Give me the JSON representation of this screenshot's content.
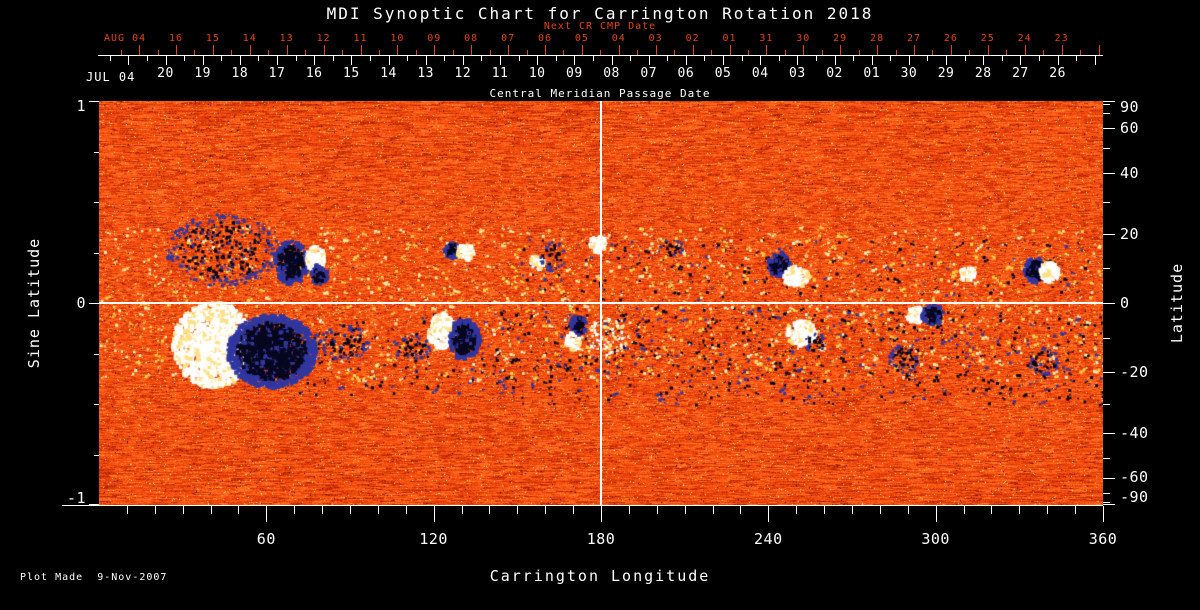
{
  "footer": {
    "plot_made": "Plot Made  9-Nov-2007"
  },
  "colors": {
    "background": "#000000",
    "axis_white": "#ffffff",
    "axis_red": "#e8420c"
  },
  "chart_data": {
    "type": "heatmap",
    "title": "MDI Synoptic Chart for Carrington Rotation 2018",
    "xlabel": "Carrington Longitude",
    "ylabel_left": "Sine Latitude",
    "ylabel_right": "Latitude",
    "x_range": [
      0,
      360
    ],
    "x_major_ticks": [
      60,
      120,
      180,
      240,
      300,
      360
    ],
    "x_minor_step": 10,
    "y_left_range": [
      -1,
      1
    ],
    "y_left_major_ticks": [
      "1",
      "0",
      "-1"
    ],
    "y_left_major_values": [
      1,
      0,
      -1
    ],
    "y_left_minor_values": [
      0.75,
      0.5,
      0.25,
      -0.25,
      -0.5,
      -0.75
    ],
    "y_right_major_ticks": [
      90,
      60,
      40,
      20,
      0,
      -20,
      -40,
      -60,
      -90
    ],
    "y_right_minor_ticks": [
      80,
      70,
      50,
      30,
      10,
      -10,
      -30,
      -50,
      -70,
      -80
    ],
    "grid": "crosshair only",
    "crosshair": {
      "longitude": 180,
      "sine_latitude": 0
    },
    "top_axis_next_cr": {
      "caption": "Next CR CMP Date",
      "month_label": "AUG 04",
      "day_labels": [
        "16",
        "15",
        "14",
        "13",
        "12",
        "11",
        "10",
        "09",
        "08",
        "07",
        "06",
        "05",
        "04",
        "03",
        "02",
        "01",
        "31",
        "30",
        "29",
        "28",
        "27",
        "26",
        "25",
        "24",
        "23"
      ]
    },
    "top_axis_cmp": {
      "caption": "Central Meridian Passage Date",
      "month_label": "JUL 04",
      "day_labels": [
        "20",
        "19",
        "18",
        "17",
        "16",
        "15",
        "14",
        "13",
        "12",
        "11",
        "10",
        "09",
        "08",
        "07",
        "06",
        "05",
        "04",
        "03",
        "02",
        "01",
        "30",
        "29",
        "28",
        "27",
        "26"
      ]
    },
    "colormap": {
      "description": "orange-red noisy magnetogram; white = positive polarity, dark navy = negative polarity",
      "background_palette": [
        "#a82303",
        "#d63507",
        "#ef4a0e",
        "#ff5f16",
        "#ff7e2e"
      ],
      "network_yellow": "#ffd24a",
      "network_pale": "#ffeeb0",
      "positive_core": "#ffffff",
      "positive_warm": "#ffe082",
      "negative_core": "#07071f",
      "negative_fringe": "#3136a0",
      "dark_speck": "#1a1c66"
    },
    "active_regions": [
      {
        "lon": 45,
        "slat": 0.26,
        "dlon": 42,
        "dslat": 0.36,
        "polarity": "negative",
        "style": "speckle",
        "intensity": 0.45
      },
      {
        "lon": 69,
        "slat": 0.2,
        "dlon": 12,
        "dslat": 0.22,
        "polarity": "negative",
        "style": "blob",
        "intensity": 0.7
      },
      {
        "lon": 77.5,
        "slat": 0.22,
        "dlon": 7,
        "dslat": 0.12,
        "polarity": "positive",
        "style": "blob",
        "intensity": 0.9
      },
      {
        "lon": 79,
        "slat": 0.14,
        "dlon": 6,
        "dslat": 0.1,
        "polarity": "negative",
        "style": "blob",
        "intensity": 0.7
      },
      {
        "lon": 41,
        "slat": -0.21,
        "dlon": 29,
        "dslat": 0.42,
        "polarity": "positive",
        "style": "blob",
        "intensity": 1.0
      },
      {
        "lon": 62,
        "slat": -0.24,
        "dlon": 32,
        "dslat": 0.36,
        "polarity": "negative",
        "style": "blob",
        "intensity": 1.0
      },
      {
        "lon": 88,
        "slat": -0.2,
        "dlon": 18,
        "dslat": 0.18,
        "polarity": "negative",
        "style": "speckle",
        "intensity": 0.5
      },
      {
        "lon": 126.5,
        "slat": 0.26,
        "dlon": 5,
        "dslat": 0.08,
        "polarity": "negative",
        "style": "blob",
        "intensity": 0.8
      },
      {
        "lon": 131.5,
        "slat": 0.25,
        "dlon": 6,
        "dslat": 0.08,
        "polarity": "positive",
        "style": "blob",
        "intensity": 0.9
      },
      {
        "lon": 123,
        "slat": -0.14,
        "dlon": 10,
        "dslat": 0.18,
        "polarity": "positive",
        "style": "blob",
        "intensity": 0.9
      },
      {
        "lon": 131,
        "slat": -0.18,
        "dlon": 11,
        "dslat": 0.2,
        "polarity": "negative",
        "style": "blob",
        "intensity": 0.9
      },
      {
        "lon": 112,
        "slat": -0.22,
        "dlon": 14,
        "dslat": 0.12,
        "polarity": "negative",
        "style": "speckle",
        "intensity": 0.4
      },
      {
        "lon": 157,
        "slat": 0.2,
        "dlon": 5,
        "dslat": 0.07,
        "polarity": "positive",
        "style": "blob",
        "intensity": 0.7
      },
      {
        "lon": 163,
        "slat": 0.23,
        "dlon": 10,
        "dslat": 0.15,
        "polarity": "negative",
        "style": "speckle",
        "intensity": 0.4
      },
      {
        "lon": 179,
        "slat": 0.29,
        "dlon": 6,
        "dslat": 0.08,
        "polarity": "positive",
        "style": "blob",
        "intensity": 1.0
      },
      {
        "lon": 172,
        "slat": -0.11,
        "dlon": 6,
        "dslat": 0.1,
        "polarity": "negative",
        "style": "blob",
        "intensity": 0.85
      },
      {
        "lon": 170,
        "slat": -0.19,
        "dlon": 5,
        "dslat": 0.08,
        "polarity": "positive",
        "style": "blob",
        "intensity": 0.8
      },
      {
        "lon": 183,
        "slat": -0.17,
        "dlon": 16,
        "dslat": 0.18,
        "polarity": "positive",
        "style": "speckle",
        "intensity": 0.45
      },
      {
        "lon": 205,
        "slat": 0.27,
        "dlon": 9,
        "dslat": 0.1,
        "polarity": "negative",
        "style": "speckle",
        "intensity": 0.35
      },
      {
        "lon": 244,
        "slat": 0.19,
        "dlon": 8,
        "dslat": 0.12,
        "polarity": "negative",
        "style": "blob",
        "intensity": 0.9
      },
      {
        "lon": 250,
        "slat": 0.13,
        "dlon": 9,
        "dslat": 0.1,
        "polarity": "positive",
        "style": "blob",
        "intensity": 0.9
      },
      {
        "lon": 252,
        "slat": -0.15,
        "dlon": 11,
        "dslat": 0.12,
        "polarity": "positive",
        "style": "blob",
        "intensity": 0.85
      },
      {
        "lon": 257,
        "slat": -0.2,
        "dlon": 8,
        "dslat": 0.1,
        "polarity": "negative",
        "style": "speckle",
        "intensity": 0.4
      },
      {
        "lon": 293,
        "slat": -0.06,
        "dlon": 7,
        "dslat": 0.08,
        "polarity": "positive",
        "style": "blob",
        "intensity": 0.85
      },
      {
        "lon": 299,
        "slat": -0.06,
        "dlon": 8,
        "dslat": 0.1,
        "polarity": "negative",
        "style": "blob",
        "intensity": 0.85
      },
      {
        "lon": 289,
        "slat": -0.28,
        "dlon": 11,
        "dslat": 0.15,
        "polarity": "negative",
        "style": "speckle",
        "intensity": 0.5
      },
      {
        "lon": 311.5,
        "slat": 0.14,
        "dlon": 6,
        "dslat": 0.07,
        "polarity": "positive",
        "style": "blob",
        "intensity": 0.7
      },
      {
        "lon": 336,
        "slat": 0.16,
        "dlon": 8,
        "dslat": 0.13,
        "polarity": "negative",
        "style": "blob",
        "intensity": 0.9
      },
      {
        "lon": 341,
        "slat": 0.15,
        "dlon": 7,
        "dslat": 0.1,
        "polarity": "positive",
        "style": "blob",
        "intensity": 0.85
      },
      {
        "lon": 339,
        "slat": -0.29,
        "dlon": 11,
        "dslat": 0.14,
        "polarity": "negative",
        "style": "speckle",
        "intensity": 0.5
      }
    ],
    "speckle_bands": [
      {
        "lon_range": [
          140,
          360
        ],
        "slat_range": [
          -0.5,
          -0.02
        ],
        "polarity": "negative",
        "density": 0.25
      },
      {
        "lon_range": [
          150,
          360
        ],
        "slat_range": [
          0.02,
          0.32
        ],
        "polarity": "negative",
        "density": 0.13
      },
      {
        "lon_range": [
          60,
          150
        ],
        "slat_range": [
          -0.45,
          -0.05
        ],
        "polarity": "negative",
        "density": 0.16
      },
      {
        "lon_range": [
          0,
          360
        ],
        "slat_range": [
          -0.38,
          0.38
        ],
        "polarity": "network",
        "density": 0.2
      }
    ]
  }
}
